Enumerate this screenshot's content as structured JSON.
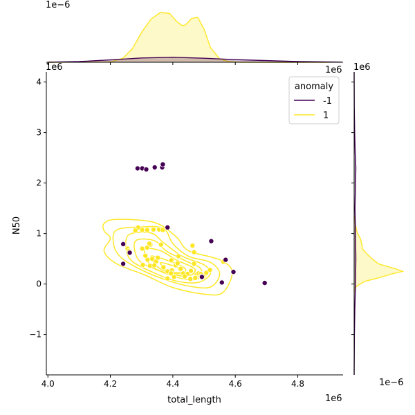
{
  "chart_data": {
    "type": "scatter",
    "title": "",
    "xlabel": "total_length",
    "ylabel": "N50",
    "x_offset_label": "1e6",
    "y_offset_label": "1e6",
    "xlim": [
      3.995,
      4.945
    ],
    "ylim": [
      -1.8,
      4.2
    ],
    "x_ticks": [
      4.0,
      4.2,
      4.4,
      4.6,
      4.8
    ],
    "x_tick_labels": [
      "4.0",
      "4.2",
      "4.4",
      "4.6",
      "4.8"
    ],
    "y_ticks": [
      -1,
      0,
      1,
      2,
      3,
      4
    ],
    "y_tick_labels": [
      "−1",
      "0",
      "1",
      "2",
      "3",
      "4"
    ],
    "legend": {
      "title": "anomaly",
      "placement": "top-right",
      "entries": [
        {
          "label": "-1",
          "color": "#440154"
        },
        {
          "label": "1",
          "color": "#fde725"
        }
      ]
    },
    "series": [
      {
        "name": "-1",
        "color": "#440154",
        "points": [
          [
            4.287,
            2.29
          ],
          [
            4.302,
            2.29
          ],
          [
            4.315,
            2.27
          ],
          [
            4.342,
            2.31
          ],
          [
            4.366,
            2.31
          ],
          [
            4.368,
            2.37
          ],
          [
            4.383,
            1.12
          ],
          [
            4.241,
            0.79
          ],
          [
            4.241,
            0.4
          ],
          [
            4.262,
            0.62
          ],
          [
            4.523,
            0.85
          ],
          [
            4.569,
            0.48
          ],
          [
            4.594,
            0.24
          ],
          [
            4.557,
            0.03
          ],
          [
            4.694,
            0.02
          ],
          [
            4.493,
            0.14
          ]
        ]
      },
      {
        "name": "1",
        "color": "#fde725",
        "points": [
          [
            4.289,
            1.12
          ],
          [
            4.302,
            1.07
          ],
          [
            4.318,
            1.07
          ],
          [
            4.338,
            1.08
          ],
          [
            4.356,
            1.08
          ],
          [
            4.368,
            1.07
          ],
          [
            4.28,
            1.06
          ],
          [
            4.255,
            0.7
          ],
          [
            4.259,
            0.65
          ],
          [
            4.302,
            0.7
          ],
          [
            4.318,
            0.72
          ],
          [
            4.328,
            0.78
          ],
          [
            4.362,
            0.78
          ],
          [
            4.304,
            0.38
          ],
          [
            4.319,
            0.48
          ],
          [
            4.334,
            0.5
          ],
          [
            4.347,
            0.45
          ],
          [
            4.327,
            0.36
          ],
          [
            4.341,
            0.37
          ],
          [
            4.352,
            0.52
          ],
          [
            4.37,
            0.33
          ],
          [
            4.383,
            0.25
          ],
          [
            4.395,
            0.47
          ],
          [
            4.397,
            0.27
          ],
          [
            4.409,
            0.37
          ],
          [
            4.415,
            0.41
          ],
          [
            4.418,
            0.55
          ],
          [
            4.425,
            0.3
          ],
          [
            4.433,
            0.21
          ],
          [
            4.447,
            0.2
          ],
          [
            4.458,
            0.26
          ],
          [
            4.463,
            0.76
          ],
          [
            4.468,
            0.63
          ],
          [
            4.468,
            0.4
          ],
          [
            4.476,
            0.18
          ],
          [
            4.482,
            0.21
          ],
          [
            4.49,
            0.2
          ],
          [
            4.498,
            0.15
          ],
          [
            4.507,
            0.22
          ],
          [
            4.519,
            0.28
          ],
          [
            4.562,
            0.44
          ],
          [
            4.383,
            0.11
          ],
          [
            4.394,
            0.21
          ],
          [
            4.404,
            0.14
          ],
          [
            4.438,
            0.15
          ],
          [
            4.456,
            0.1
          ],
          [
            4.472,
            0.12
          ],
          [
            4.49,
            0.15
          ],
          [
            4.325,
            0.8
          ],
          [
            4.312,
            0.56
          ]
        ]
      }
    ],
    "marginal_x": {
      "offset_label": "1e−6",
      "series": [
        {
          "name": "1",
          "x": [
            4.0,
            4.2,
            4.24,
            4.27,
            4.3,
            4.33,
            4.36,
            4.39,
            4.41,
            4.43,
            4.44,
            4.46,
            4.48,
            4.5,
            4.52,
            4.55,
            4.58,
            4.62,
            4.7,
            4.9
          ],
          "density": [
            0.0,
            0.01,
            0.12,
            0.4,
            0.9,
            1.3,
            1.5,
            1.47,
            1.25,
            1.1,
            1.12,
            1.32,
            1.35,
            1.0,
            0.45,
            0.1,
            0.02,
            0.0,
            0.0,
            0.0
          ]
        },
        {
          "name": "-1",
          "x": [
            4.0,
            4.1,
            4.2,
            4.3,
            4.4,
            4.5,
            4.6,
            4.7,
            4.8,
            4.94
          ],
          "density": [
            0.0,
            0.02,
            0.07,
            0.13,
            0.15,
            0.12,
            0.08,
            0.05,
            0.02,
            0.005
          ]
        }
      ]
    },
    "marginal_y": {
      "offset_label": "1e−6",
      "series": [
        {
          "name": "1",
          "y": [
            -0.15,
            -0.05,
            0.05,
            0.12,
            0.2,
            0.25,
            0.3,
            0.4,
            0.5,
            0.6,
            0.7,
            0.8,
            0.9,
            1.0,
            1.1,
            1.2,
            1.35
          ],
          "density": [
            0.0,
            0.03,
            0.15,
            0.35,
            0.55,
            0.7,
            0.6,
            0.35,
            0.26,
            0.18,
            0.12,
            0.11,
            0.09,
            0.05,
            0.03,
            0.015,
            0.0
          ]
        },
        {
          "name": "-1",
          "y": [
            -1.8,
            -1.0,
            -0.5,
            0.0,
            0.5,
            1.0,
            1.5,
            2.0,
            2.3,
            2.6,
            3.0,
            3.5,
            4.2
          ],
          "density": [
            0.0,
            0.004,
            0.01,
            0.02,
            0.025,
            0.02,
            0.012,
            0.02,
            0.025,
            0.015,
            0.008,
            0.002,
            0.0
          ]
        }
      ]
    },
    "kde_contour_levels": [
      [
        [
          4.18,
          1.2
        ],
        [
          4.22,
          1.28
        ],
        [
          4.34,
          1.22
        ],
        [
          4.41,
          0.94
        ],
        [
          4.45,
          0.66
        ],
        [
          4.55,
          0.48
        ],
        [
          4.59,
          0.24
        ],
        [
          4.56,
          -0.17
        ],
        [
          4.5,
          -0.2
        ],
        [
          4.4,
          -0.07
        ],
        [
          4.31,
          0.18
        ],
        [
          4.22,
          0.4
        ],
        [
          4.18,
          0.65
        ],
        [
          4.2,
          0.9
        ],
        [
          4.18,
          1.05
        ]
      ],
      [
        [
          4.22,
          1.07
        ],
        [
          4.3,
          1.13
        ],
        [
          4.37,
          1.1
        ],
        [
          4.4,
          0.8
        ],
        [
          4.45,
          0.55
        ],
        [
          4.52,
          0.43
        ],
        [
          4.55,
          0.2
        ],
        [
          4.52,
          -0.06
        ],
        [
          4.45,
          -0.04
        ],
        [
          4.36,
          0.12
        ],
        [
          4.28,
          0.34
        ],
        [
          4.23,
          0.55
        ],
        [
          4.21,
          0.8
        ]
      ],
      [
        [
          4.26,
          0.98
        ],
        [
          4.33,
          1.01
        ],
        [
          4.37,
          0.82
        ],
        [
          4.43,
          0.55
        ],
        [
          4.5,
          0.38
        ],
        [
          4.52,
          0.2
        ],
        [
          4.48,
          0.03
        ],
        [
          4.41,
          0.06
        ],
        [
          4.34,
          0.22
        ],
        [
          4.27,
          0.45
        ],
        [
          4.25,
          0.7
        ]
      ],
      [
        [
          4.28,
          0.85
        ],
        [
          4.34,
          0.86
        ],
        [
          4.38,
          0.65
        ],
        [
          4.44,
          0.46
        ],
        [
          4.49,
          0.3
        ],
        [
          4.48,
          0.1
        ],
        [
          4.42,
          0.12
        ],
        [
          4.35,
          0.28
        ],
        [
          4.29,
          0.48
        ]
      ],
      [
        [
          4.31,
          0.68
        ],
        [
          4.36,
          0.66
        ],
        [
          4.41,
          0.48
        ],
        [
          4.47,
          0.3
        ],
        [
          4.45,
          0.16
        ],
        [
          4.39,
          0.2
        ],
        [
          4.33,
          0.36
        ]
      ],
      [
        [
          4.33,
          0.55
        ],
        [
          4.39,
          0.45
        ],
        [
          4.44,
          0.3
        ],
        [
          4.42,
          0.2
        ],
        [
          4.36,
          0.3
        ]
      ],
      [
        [
          4.36,
          0.42
        ],
        [
          4.41,
          0.34
        ],
        [
          4.43,
          0.25
        ],
        [
          4.39,
          0.24
        ]
      ]
    ]
  }
}
